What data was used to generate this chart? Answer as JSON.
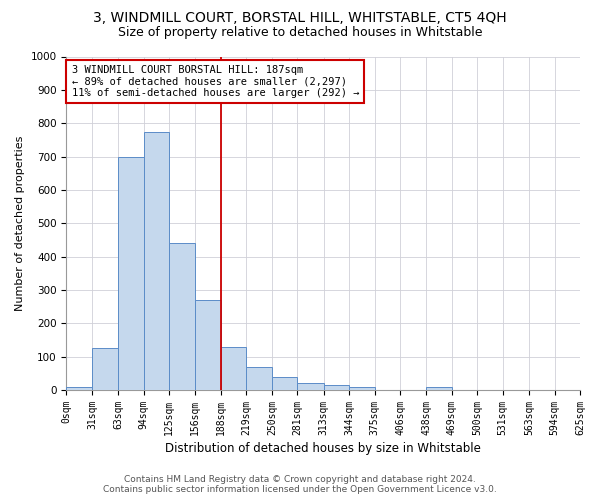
{
  "title": "3, WINDMILL COURT, BORSTAL HILL, WHITSTABLE, CT5 4QH",
  "subtitle": "Size of property relative to detached houses in Whitstable",
  "xlabel": "Distribution of detached houses by size in Whitstable",
  "ylabel": "Number of detached properties",
  "footer_line1": "Contains HM Land Registry data © Crown copyright and database right 2024.",
  "footer_line2": "Contains public sector information licensed under the Open Government Licence v3.0.",
  "bin_labels": [
    "0sqm",
    "31sqm",
    "63sqm",
    "94sqm",
    "125sqm",
    "156sqm",
    "188sqm",
    "219sqm",
    "250sqm",
    "281sqm",
    "313sqm",
    "344sqm",
    "375sqm",
    "406sqm",
    "438sqm",
    "469sqm",
    "500sqm",
    "531sqm",
    "563sqm",
    "594sqm",
    "625sqm"
  ],
  "bin_edges": [
    0,
    31,
    63,
    94,
    125,
    156,
    188,
    219,
    250,
    281,
    313,
    344,
    375,
    406,
    438,
    469,
    500,
    531,
    563,
    594,
    625
  ],
  "bar_heights": [
    8,
    125,
    700,
    775,
    440,
    270,
    130,
    70,
    40,
    22,
    15,
    10,
    0,
    0,
    10,
    0,
    0,
    0,
    0,
    0
  ],
  "bar_color": "#c5d8ed",
  "bar_edge_color": "#5b8cc8",
  "ylim": [
    0,
    1000
  ],
  "property_line_x": 188,
  "property_line_color": "#cc0000",
  "annotation_line1": "3 WINDMILL COURT BORSTAL HILL: 187sqm",
  "annotation_line2": "← 89% of detached houses are smaller (2,297)",
  "annotation_line3": "11% of semi-detached houses are larger (292) →",
  "annotation_box_color": "#cc0000",
  "title_fontsize": 10,
  "subtitle_fontsize": 9,
  "ylabel_fontsize": 8,
  "xlabel_fontsize": 8.5,
  "tick_fontsize": 7,
  "annotation_fontsize": 7.5,
  "footer_fontsize": 6.5
}
